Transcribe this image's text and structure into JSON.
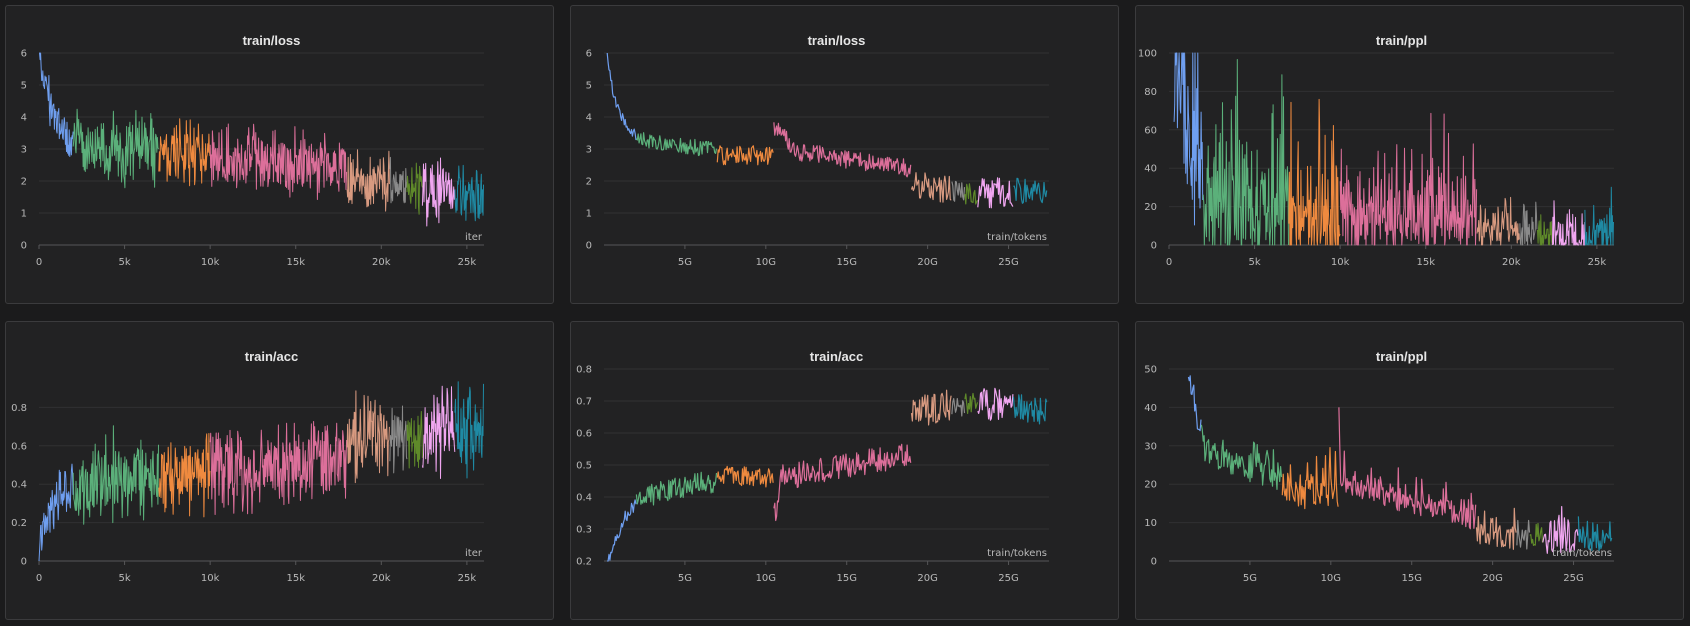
{
  "colors": {
    "seg1": "#6f9ff0",
    "seg2": "#5bb07a",
    "seg3": "#ef8a3f",
    "seg4": "#dc6f9a",
    "seg5": "#d89a80",
    "seg6": "#8a8a8a",
    "seg7": "#5f8a2a",
    "seg8": "#f0a6f0",
    "seg9": "#1f8aa4"
  },
  "chart_data": [
    {
      "type": "line",
      "title": "train/loss",
      "xlabel": "iter",
      "x_unit": "iter",
      "xlim": [
        0,
        26000
      ],
      "ylim": [
        0,
        6
      ],
      "xticks": [
        0,
        5000,
        10000,
        15000,
        20000,
        25000
      ],
      "xtick_labels": [
        "0",
        "5k",
        "10k",
        "15k",
        "20k",
        "25k"
      ],
      "yticks": [
        0,
        1,
        2,
        3,
        4,
        5,
        6
      ],
      "ytick_labels": [
        "0",
        "1",
        "2",
        "3",
        "4",
        "5",
        "6"
      ],
      "series": [
        {
          "color_key": "seg1",
          "x": [
            0,
            300,
            700,
            1200,
            2000
          ],
          "y": [
            6,
            5.2,
            4.3,
            3.6,
            3.2
          ],
          "noise": 0.8
        },
        {
          "color_key": "seg2",
          "x": [
            2000,
            4500,
            7000
          ],
          "y": [
            3.1,
            3.0,
            3.0
          ],
          "noise": 1.3
        },
        {
          "color_key": "seg3",
          "x": [
            7000,
            10000
          ],
          "y": [
            3.0,
            2.9
          ],
          "noise": 1.2
        },
        {
          "color_key": "seg4",
          "x": [
            10000,
            14000,
            18000
          ],
          "y": [
            2.8,
            2.6,
            2.4
          ],
          "noise": 1.2
        },
        {
          "color_key": "seg5",
          "x": [
            18000,
            20500
          ],
          "y": [
            2.0,
            1.9
          ],
          "noise": 1.2
        },
        {
          "color_key": "seg6",
          "x": [
            20500,
            21500
          ],
          "y": [
            1.9,
            1.9
          ],
          "noise": 1.1
        },
        {
          "color_key": "seg7",
          "x": [
            21500,
            22400
          ],
          "y": [
            1.8,
            1.8
          ],
          "noise": 1.1
        },
        {
          "color_key": "seg8",
          "x": [
            22400,
            24300
          ],
          "y": [
            1.7,
            1.7
          ],
          "noise": 1.2
        },
        {
          "color_key": "seg9",
          "x": [
            24300,
            26000
          ],
          "y": [
            1.6,
            1.6
          ],
          "noise": 1.2
        }
      ]
    },
    {
      "type": "line",
      "title": "train/loss",
      "xlabel": "train/tokens",
      "x_unit": "tokens",
      "xlim": [
        0,
        27500000000
      ],
      "ylim": [
        0,
        6
      ],
      "xticks": [
        5000000000,
        10000000000,
        15000000000,
        20000000000,
        25000000000
      ],
      "xtick_labels": [
        "5G",
        "10G",
        "15G",
        "20G",
        "25G"
      ],
      "yticks": [
        0,
        1,
        2,
        3,
        4,
        5,
        6
      ],
      "ytick_labels": [
        "0",
        "1",
        "2",
        "3",
        "4",
        "5",
        "6"
      ],
      "series": [
        {
          "color_key": "seg1",
          "x": [
            200000000,
            600000000,
            1200000000,
            2000000000
          ],
          "y": [
            6.0,
            4.6,
            3.9,
            3.4
          ],
          "noise": 0.15
        },
        {
          "color_key": "seg2",
          "x": [
            2000000000,
            4500000000,
            7000000000
          ],
          "y": [
            3.3,
            3.1,
            3.0
          ],
          "noise": 0.25
        },
        {
          "color_key": "seg3",
          "x": [
            7000000000,
            10500000000
          ],
          "y": [
            2.8,
            2.8
          ],
          "noise": 0.3
        },
        {
          "color_key": "seg4",
          "x": [
            10500000000,
            12000000000,
            16000000000,
            19000000000
          ],
          "y": [
            3.7,
            2.9,
            2.6,
            2.4
          ],
          "noise": 0.3
        },
        {
          "color_key": "seg5",
          "x": [
            19000000000,
            21500000000
          ],
          "y": [
            1.9,
            1.7
          ],
          "noise": 0.45
        },
        {
          "color_key": "seg6",
          "x": [
            21500000000,
            22300000000
          ],
          "y": [
            1.7,
            1.6
          ],
          "noise": 0.35
        },
        {
          "color_key": "seg7",
          "x": [
            22300000000,
            23100000000
          ],
          "y": [
            1.6,
            1.6
          ],
          "noise": 0.35
        },
        {
          "color_key": "seg8",
          "x": [
            23100000000,
            25300000000
          ],
          "y": [
            1.6,
            1.7
          ],
          "noise": 0.5
        },
        {
          "color_key": "seg9",
          "x": [
            25300000000,
            27400000000
          ],
          "y": [
            1.7,
            1.7
          ],
          "noise": 0.4
        }
      ]
    },
    {
      "type": "line",
      "title": "train/ppl",
      "xlabel": "",
      "x_unit": "iter",
      "xlim": [
        0,
        26000
      ],
      "ylim": [
        0,
        100
      ],
      "xticks": [
        0,
        5000,
        10000,
        15000,
        20000,
        25000
      ],
      "xtick_labels": [
        "0",
        "5k",
        "10k",
        "15k",
        "20k",
        "25k"
      ],
      "yticks": [
        0,
        20,
        40,
        60,
        80,
        100
      ],
      "ytick_labels": [
        "0",
        "20",
        "40",
        "60",
        "80",
        "100"
      ],
      "series": [
        {
          "color_key": "seg1",
          "x": [
            300,
            1200,
            2000
          ],
          "y": [
            100,
            60,
            35
          ],
          "noise": 60
        },
        {
          "color_key": "seg2",
          "x": [
            2000,
            4500,
            7000
          ],
          "y": [
            25,
            24,
            22
          ],
          "noise": 45
        },
        {
          "color_key": "seg3",
          "x": [
            7000,
            10000
          ],
          "y": [
            20,
            19
          ],
          "noise": 38
        },
        {
          "color_key": "seg4",
          "x": [
            10000,
            14000,
            18000
          ],
          "y": [
            18,
            16,
            14
          ],
          "noise": 28
        },
        {
          "color_key": "seg5",
          "x": [
            18000,
            20500
          ],
          "y": [
            9,
            8
          ],
          "noise": 16
        },
        {
          "color_key": "seg6",
          "x": [
            20500,
            21500
          ],
          "y": [
            8,
            8
          ],
          "noise": 14
        },
        {
          "color_key": "seg7",
          "x": [
            21500,
            22400
          ],
          "y": [
            7,
            7
          ],
          "noise": 14
        },
        {
          "color_key": "seg8",
          "x": [
            22400,
            24300
          ],
          "y": [
            6,
            6
          ],
          "noise": 16
        },
        {
          "color_key": "seg9",
          "x": [
            24300,
            26000
          ],
          "y": [
            6,
            6
          ],
          "noise": 16
        }
      ]
    },
    {
      "type": "line",
      "title": "train/acc",
      "xlabel": "iter",
      "x_unit": "iter",
      "xlim": [
        0,
        26000
      ],
      "ylim": [
        0,
        1.0
      ],
      "xticks": [
        0,
        5000,
        10000,
        15000,
        20000,
        25000
      ],
      "xtick_labels": [
        "0",
        "5k",
        "10k",
        "15k",
        "20k",
        "25k"
      ],
      "yticks": [
        0,
        0.2,
        0.4,
        0.6,
        0.8
      ],
      "ytick_labels": [
        "0",
        "0.2",
        "0.4",
        "0.6",
        "0.8"
      ],
      "series": [
        {
          "color_key": "seg1",
          "x": [
            0,
            500,
            1200,
            2000
          ],
          "y": [
            0.05,
            0.25,
            0.35,
            0.42
          ],
          "noise": 0.16
        },
        {
          "color_key": "seg2",
          "x": [
            2000,
            4500,
            7000
          ],
          "y": [
            0.42,
            0.44,
            0.45
          ],
          "noise": 0.28
        },
        {
          "color_key": "seg3",
          "x": [
            7000,
            10000
          ],
          "y": [
            0.45,
            0.47
          ],
          "noise": 0.26
        },
        {
          "color_key": "seg4",
          "x": [
            10000,
            14000,
            18000
          ],
          "y": [
            0.47,
            0.5,
            0.54
          ],
          "noise": 0.26
        },
        {
          "color_key": "seg5",
          "x": [
            18000,
            20500
          ],
          "y": [
            0.62,
            0.64
          ],
          "noise": 0.3
        },
        {
          "color_key": "seg6",
          "x": [
            20500,
            21500
          ],
          "y": [
            0.65,
            0.65
          ],
          "noise": 0.26
        },
        {
          "color_key": "seg7",
          "x": [
            21500,
            22400
          ],
          "y": [
            0.66,
            0.66
          ],
          "noise": 0.26
        },
        {
          "color_key": "seg8",
          "x": [
            22400,
            24300
          ],
          "y": [
            0.66,
            0.67
          ],
          "noise": 0.3
        },
        {
          "color_key": "seg9",
          "x": [
            24300,
            26000
          ],
          "y": [
            0.68,
            0.68
          ],
          "noise": 0.3
        }
      ]
    },
    {
      "type": "line",
      "title": "train/acc",
      "xlabel": "train/tokens",
      "x_unit": "tokens",
      "xlim": [
        0,
        27500000000
      ],
      "ylim": [
        0.2,
        0.8
      ],
      "xticks": [
        5000000000,
        10000000000,
        15000000000,
        20000000000,
        25000000000
      ],
      "xtick_labels": [
        "5G",
        "10G",
        "15G",
        "20G",
        "25G"
      ],
      "yticks": [
        0.2,
        0.3,
        0.4,
        0.5,
        0.6,
        0.7,
        0.8
      ],
      "ytick_labels": [
        "0.2",
        "0.3",
        "0.4",
        "0.5",
        "0.6",
        "0.7",
        "0.8"
      ],
      "series": [
        {
          "color_key": "seg1",
          "x": [
            200000000,
            1200000000,
            2000000000
          ],
          "y": [
            0.2,
            0.33,
            0.38
          ],
          "noise": 0.02
        },
        {
          "color_key": "seg2",
          "x": [
            2000000000,
            4500000000,
            7000000000
          ],
          "y": [
            0.39,
            0.43,
            0.45
          ],
          "noise": 0.035
        },
        {
          "color_key": "seg3",
          "x": [
            7000000000,
            10500000000
          ],
          "y": [
            0.47,
            0.46
          ],
          "noise": 0.03
        },
        {
          "color_key": "seg4",
          "x": [
            10500000000,
            11000000000,
            15000000000,
            19000000000
          ],
          "y": [
            0.33,
            0.46,
            0.5,
            0.53
          ],
          "noise": 0.04
        },
        {
          "color_key": "seg5",
          "x": [
            19000000000,
            21500000000
          ],
          "y": [
            0.66,
            0.69
          ],
          "noise": 0.05
        },
        {
          "color_key": "seg6",
          "x": [
            21500000000,
            22300000000
          ],
          "y": [
            0.69,
            0.69
          ],
          "noise": 0.04
        },
        {
          "color_key": "seg7",
          "x": [
            22300000000,
            23100000000
          ],
          "y": [
            0.69,
            0.69
          ],
          "noise": 0.04
        },
        {
          "color_key": "seg8",
          "x": [
            23100000000,
            25300000000
          ],
          "y": [
            0.69,
            0.69
          ],
          "noise": 0.05
        },
        {
          "color_key": "seg9",
          "x": [
            25300000000,
            27400000000
          ],
          "y": [
            0.68,
            0.67
          ],
          "noise": 0.045
        }
      ]
    },
    {
      "type": "line",
      "title": "train/ppl",
      "xlabel": "train/tokens",
      "x_unit": "tokens",
      "xlim": [
        0,
        27500000000
      ],
      "ylim": [
        0,
        50
      ],
      "xticks": [
        5000000000,
        10000000000,
        15000000000,
        20000000000,
        25000000000
      ],
      "xtick_labels": [
        "5G",
        "10G",
        "15G",
        "20G",
        "25G"
      ],
      "yticks": [
        0,
        10,
        20,
        30,
        40,
        50
      ],
      "ytick_labels": [
        "0",
        "10",
        "20",
        "30",
        "40",
        "50"
      ],
      "series": [
        {
          "color_key": "seg1",
          "x": [
            1200000000,
            1600000000,
            2000000000
          ],
          "y": [
            50,
            40,
            33
          ],
          "noise": 4
        },
        {
          "color_key": "seg2",
          "x": [
            2000000000,
            4500000000,
            7000000000
          ],
          "y": [
            31,
            26,
            22
          ],
          "noise": 5
        },
        {
          "color_key": "seg3",
          "x": [
            7000000000,
            10500000000
          ],
          "y": [
            18,
            19
          ],
          "noise": 5
        },
        {
          "color_key": "seg4",
          "x": [
            10500000000,
            10600000000,
            15000000000,
            19000000000
          ],
          "y": [
            44,
            22,
            16,
            12
          ],
          "noise": 4
        },
        {
          "color_key": "seg5",
          "x": [
            19000000000,
            21500000000
          ],
          "y": [
            8,
            6
          ],
          "noise": 3.5
        },
        {
          "color_key": "seg6",
          "x": [
            21500000000,
            22300000000
          ],
          "y": [
            6,
            6
          ],
          "noise": 3
        },
        {
          "color_key": "seg7",
          "x": [
            22300000000,
            23100000000
          ],
          "y": [
            6,
            6
          ],
          "noise": 3
        },
        {
          "color_key": "seg8",
          "x": [
            23100000000,
            25300000000
          ],
          "y": [
            6,
            6
          ],
          "noise": 4
        },
        {
          "color_key": "seg9",
          "x": [
            25300000000,
            27400000000
          ],
          "y": [
            6,
            6
          ],
          "noise": 3.5
        }
      ]
    }
  ]
}
